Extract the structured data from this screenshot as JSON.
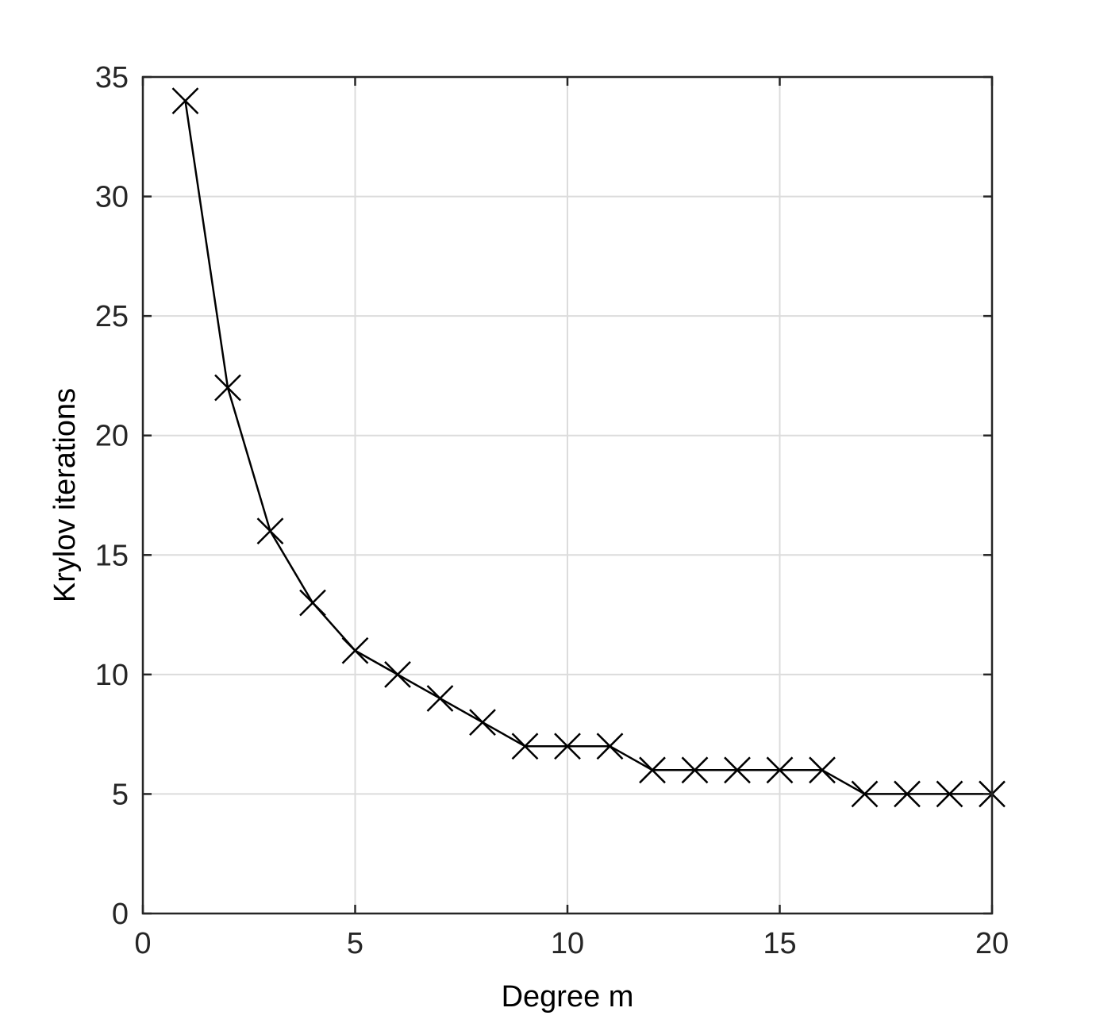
{
  "chart_data": {
    "type": "line",
    "title": "",
    "xlabel": "Degree m",
    "ylabel": "Krylov iterations",
    "xlim": [
      0,
      20
    ],
    "ylim": [
      0,
      35
    ],
    "xticks": [
      0,
      5,
      10,
      15,
      20
    ],
    "yticks": [
      0,
      5,
      10,
      15,
      20,
      25,
      30,
      35
    ],
    "grid": true,
    "legend": "none",
    "marker": "x",
    "colors": {
      "line": "#000000",
      "grid": "#dcdcdc",
      "axes": "#262626"
    },
    "series": [
      {
        "x": [
          1,
          2,
          3,
          4,
          5,
          6,
          7,
          8,
          9,
          10,
          11,
          12,
          13,
          14,
          15,
          16,
          17,
          18,
          19,
          20
        ],
        "y": [
          34,
          22,
          16,
          13,
          11,
          10,
          9,
          8,
          7,
          7,
          7,
          6,
          6,
          6,
          6,
          6,
          5,
          5,
          5,
          5
        ]
      }
    ]
  }
}
